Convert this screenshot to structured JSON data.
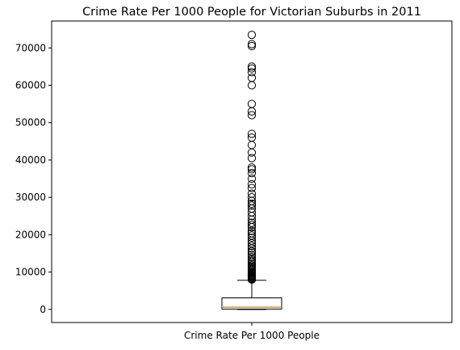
{
  "chart_data": {
    "type": "box",
    "title": "Crime Rate Per 1000 People for Victorian Suburbs in 2011",
    "categories": [
      "Crime Rate Per 1000 People"
    ],
    "xlabel": "",
    "ylabel": "",
    "ylim": [
      -3500,
      77200
    ],
    "yticks": [
      0,
      10000,
      20000,
      30000,
      40000,
      50000,
      60000,
      70000
    ],
    "grid": false,
    "box": {
      "whisker_low": 0,
      "q1": 100,
      "median": 600,
      "q3": 3100,
      "whisker_high": 7800
    },
    "outliers": [
      8000,
      8200,
      8400,
      8600,
      8800,
      9000,
      9200,
      9400,
      9600,
      9800,
      10000,
      10300,
      10600,
      10900,
      11200,
      11500,
      11800,
      12200,
      12600,
      13000,
      13400,
      14000,
      14600,
      15200,
      15600,
      16300,
      17000,
      17700,
      18400,
      19200,
      19800,
      20400,
      21000,
      22000,
      22600,
      23200,
      24000,
      25000,
      26000,
      27000,
      27800,
      28300,
      29000,
      30000,
      31000,
      32500,
      33500,
      35000,
      36500,
      37500,
      38000,
      40500,
      42000,
      44000,
      46000,
      47000,
      52000,
      53000,
      55000,
      60000,
      62000,
      63500,
      64500,
      65000,
      70500,
      71000,
      73500
    ],
    "colors": {
      "median": "#ff7f0e",
      "box": "#000000",
      "outlier": "#000000"
    }
  }
}
